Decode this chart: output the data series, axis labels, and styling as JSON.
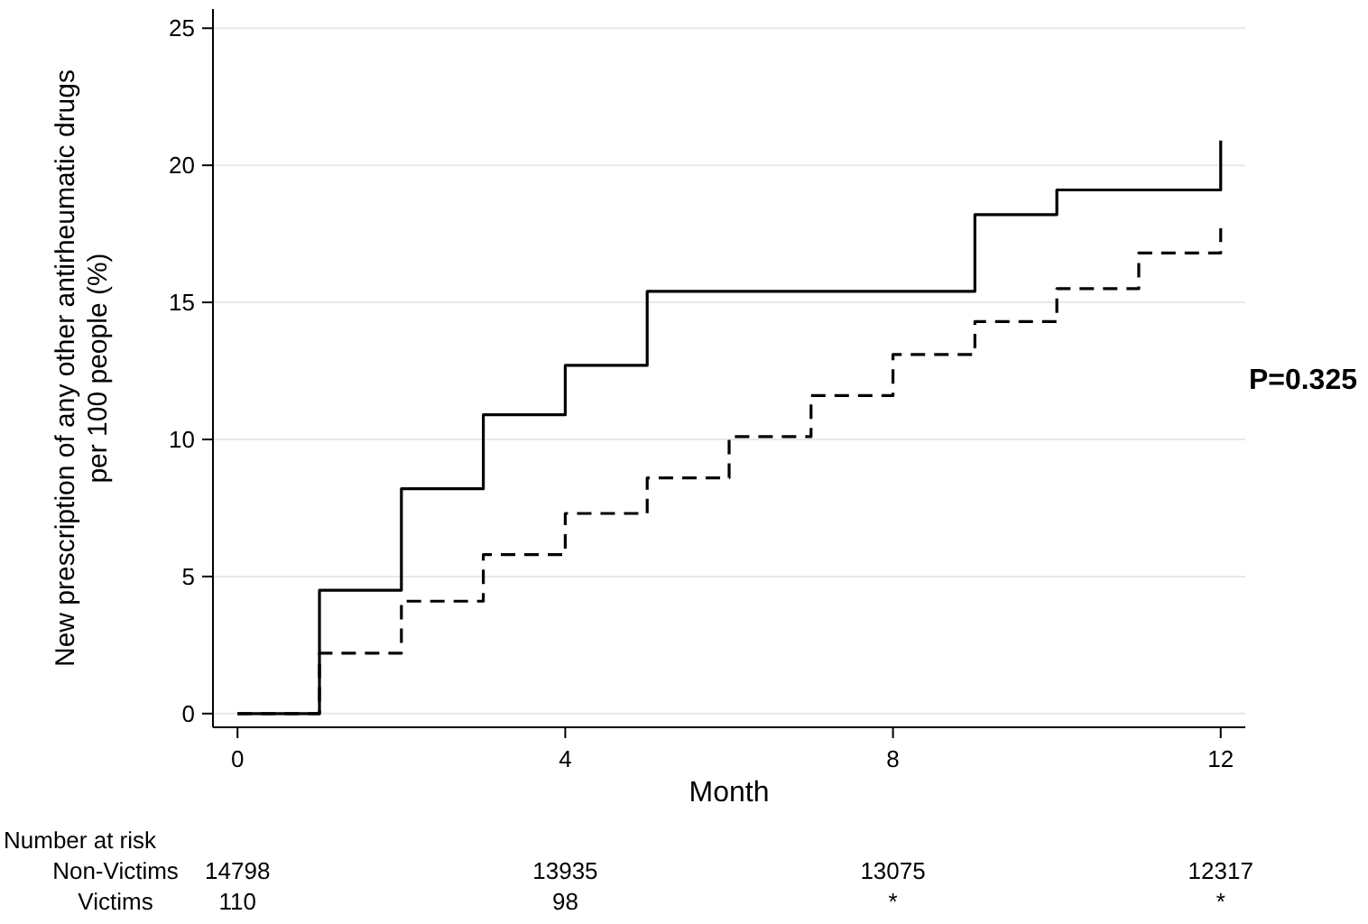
{
  "chart_data": {
    "type": "step",
    "xlabel": "Month",
    "ylabel": "New prescription of any other antirheumatic drugs per 100 people (%)",
    "xlim": [
      -0.3,
      12.3
    ],
    "xticks": [
      0,
      4,
      8,
      12
    ],
    "ylim": [
      -0.5,
      25.7
    ],
    "yticks": [
      0,
      5,
      10,
      15,
      20,
      25
    ],
    "grid": "y",
    "x": [
      0,
      1,
      2,
      3,
      4,
      5,
      6,
      7,
      8,
      9,
      10,
      11,
      12
    ],
    "series": [
      {
        "color": "#000000",
        "line_style": "solid",
        "values": [
          0,
          4.5,
          8.2,
          10.9,
          12.7,
          15.4,
          15.4,
          15.4,
          15.4,
          18.2,
          19.1,
          19.1,
          20.9
        ]
      },
      {
        "color": "#000000",
        "line_style": "dashed",
        "values": [
          0,
          2.2,
          4.1,
          5.8,
          7.3,
          8.6,
          10.1,
          11.6,
          13.1,
          14.3,
          15.5,
          16.8,
          17.7
        ]
      }
    ],
    "annotations": [
      "P=0.325",
      "Number at risk",
      "Non-Victims",
      "14798",
      "13935",
      "13075",
      "12317",
      "Victims",
      "110",
      "98",
      "*",
      "*"
    ]
  }
}
